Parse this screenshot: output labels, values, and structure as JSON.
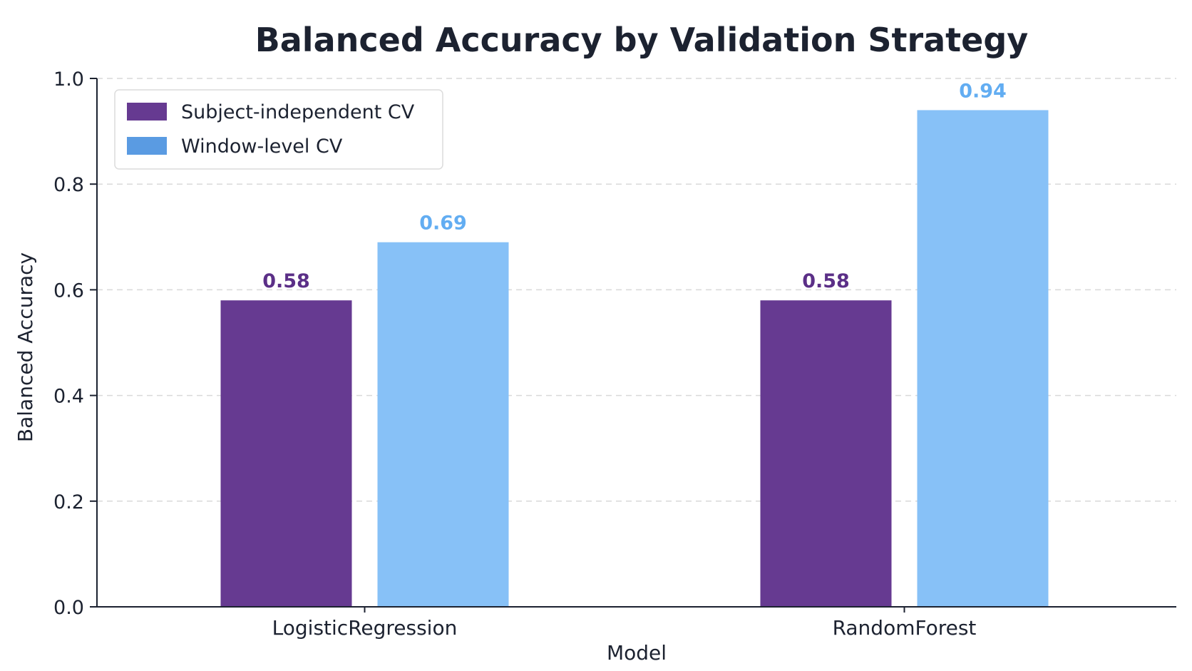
{
  "chart_data": {
    "type": "bar",
    "title": "Balanced Accuracy by Validation Strategy",
    "xlabel": "Model",
    "ylabel": "Balanced Accuracy",
    "categories": [
      "LogisticRegression",
      "RandomForest"
    ],
    "series": [
      {
        "name": "Subject-independent CV",
        "values": [
          0.58,
          0.58
        ],
        "labels": [
          "0.58",
          "0.58"
        ],
        "color": "#663a91"
      },
      {
        "name": "Window-level CV",
        "values": [
          0.69,
          0.94
        ],
        "labels": [
          "0.69",
          "0.94"
        ],
        "color": "#87c1f7"
      }
    ],
    "label_colors": [
      "#5b2f87",
      "#62adf2"
    ],
    "legend_swatch_colors": [
      "#663a91",
      "#5a9be2"
    ],
    "ylim": [
      0,
      1.0
    ],
    "yticks": [
      "0.0",
      "0.2",
      "0.4",
      "0.6",
      "0.8",
      "1.0"
    ],
    "grid": true,
    "legend_position": "top-left"
  }
}
